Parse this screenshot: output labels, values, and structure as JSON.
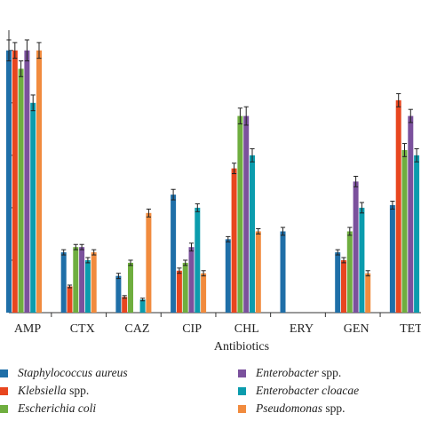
{
  "chart_data": {
    "type": "bar",
    "xlabel": "Antibiotics",
    "ylim": [
      0,
      105
    ],
    "ytick_step": 20,
    "categories": [
      "AMP",
      "CTX",
      "CAZ",
      "CIP",
      "CHL",
      "ERY",
      "GEN",
      "TET"
    ],
    "series": [
      {
        "name": "Staphylococcus aureus",
        "name_suffix": "",
        "color": "#1f6fa8",
        "values": [
          100,
          23,
          14,
          45,
          28,
          31,
          23,
          41
        ],
        "errors": [
          4,
          1,
          1,
          2,
          1,
          1.5,
          1,
          1.5
        ]
      },
      {
        "name": "Klebsiella",
        "name_suffix": " spp.",
        "color": "#e8461f",
        "values": [
          100,
          10,
          6,
          16,
          55,
          null,
          20,
          81
        ],
        "errors": [
          3,
          0.5,
          0.5,
          1,
          2,
          null,
          1,
          2.5
        ]
      },
      {
        "name": "Escherichia coli",
        "name_suffix": "",
        "color": "#6fae3f",
        "values": [
          93,
          25,
          19,
          19,
          75,
          null,
          31,
          62
        ],
        "errors": [
          3,
          1,
          1,
          1,
          3,
          null,
          1.5,
          2.5
        ]
      },
      {
        "name": "Enterobacter",
        "name_suffix": " spp.",
        "color": "#7b519d",
        "values": [
          100,
          25,
          null,
          25,
          75,
          null,
          50,
          75
        ],
        "errors": [
          4,
          1,
          null,
          1.5,
          3.5,
          null,
          2,
          2.5
        ]
      },
      {
        "name": "Enterobacter cloacae",
        "name_suffix": "",
        "color": "#0b9cad",
        "values": [
          80,
          20,
          5,
          40,
          60,
          null,
          40,
          60
        ],
        "errors": [
          3,
          1,
          0.5,
          1.5,
          2.5,
          null,
          2,
          2.5
        ]
      },
      {
        "name": "Pseudomonas",
        "name_suffix": " spp.",
        "color": "#f18b3e",
        "values": [
          100,
          23,
          38,
          15,
          31,
          null,
          15,
          null
        ],
        "errors": [
          3,
          1,
          1.5,
          1,
          1,
          null,
          1,
          null
        ]
      }
    ]
  }
}
